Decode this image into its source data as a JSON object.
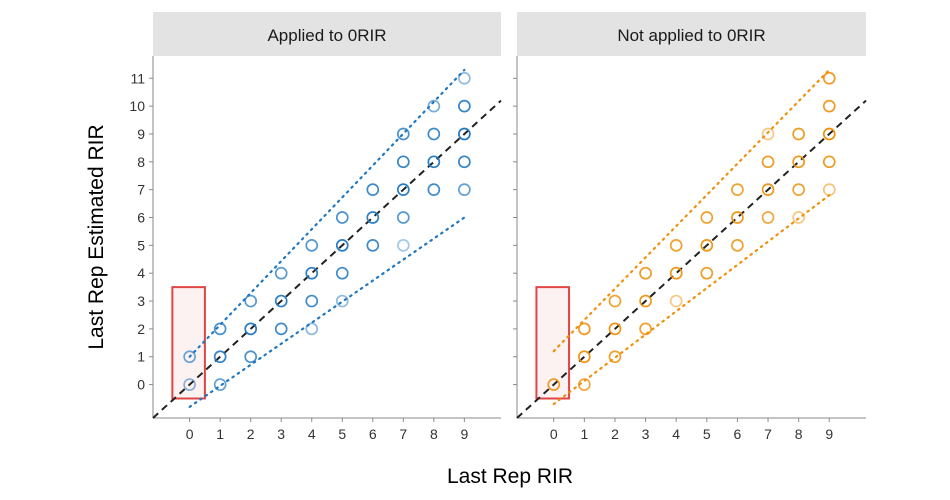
{
  "chart_data": [
    {
      "type": "scatter",
      "facet": "Applied to 0RIR",
      "xlabel": "Last Rep RIR",
      "ylabel": "Last Rep Estimated RIR",
      "x_ticks": [
        "0",
        "1",
        "2",
        "3",
        "4",
        "5",
        "6",
        "7",
        "8",
        "9"
      ],
      "y_ticks": [
        "0",
        "1",
        "2",
        "3",
        "4",
        "5",
        "6",
        "7",
        "8",
        "9",
        "10",
        "11"
      ],
      "xlim": [
        -1.2,
        10.2
      ],
      "ylim": [
        -1.2,
        11.8
      ],
      "color": "#1f78c1",
      "highlight_box": {
        "x_range": [
          -0.5,
          0.5
        ],
        "y_range": [
          -0.5,
          3.5
        ],
        "color": "#e04545"
      },
      "identity_line": {
        "style": "dashed",
        "color": "#222222"
      },
      "interval_lines": {
        "upper": {
          "from": [
            0,
            1
          ],
          "to": [
            9,
            11.3
          ]
        },
        "lower": {
          "from": [
            0,
            -0.8
          ],
          "to": [
            9,
            6
          ]
        }
      },
      "points": [
        {
          "x": 0,
          "y": 0,
          "opacity": 0.55
        },
        {
          "x": 0,
          "y": 1,
          "opacity": 0.65
        },
        {
          "x": 1,
          "y": 0,
          "opacity": 0.7
        },
        {
          "x": 1,
          "y": 1,
          "opacity": 0.9
        },
        {
          "x": 1,
          "y": 2,
          "opacity": 0.8
        },
        {
          "x": 2,
          "y": 1,
          "opacity": 0.8
        },
        {
          "x": 2,
          "y": 2,
          "opacity": 0.95
        },
        {
          "x": 2,
          "y": 3,
          "opacity": 0.75
        },
        {
          "x": 3,
          "y": 2,
          "opacity": 0.85
        },
        {
          "x": 3,
          "y": 3,
          "opacity": 0.95
        },
        {
          "x": 3,
          "y": 4,
          "opacity": 0.75
        },
        {
          "x": 4,
          "y": 2,
          "opacity": 0.5
        },
        {
          "x": 4,
          "y": 3,
          "opacity": 0.85
        },
        {
          "x": 4,
          "y": 4,
          "opacity": 0.95
        },
        {
          "x": 4,
          "y": 5,
          "opacity": 0.75
        },
        {
          "x": 5,
          "y": 3,
          "opacity": 0.5
        },
        {
          "x": 5,
          "y": 4,
          "opacity": 0.85
        },
        {
          "x": 5,
          "y": 5,
          "opacity": 0.95
        },
        {
          "x": 5,
          "y": 6,
          "opacity": 0.8
        },
        {
          "x": 6,
          "y": 5,
          "opacity": 0.85
        },
        {
          "x": 6,
          "y": 6,
          "opacity": 0.95
        },
        {
          "x": 6,
          "y": 7,
          "opacity": 0.85
        },
        {
          "x": 7,
          "y": 5,
          "opacity": 0.4
        },
        {
          "x": 7,
          "y": 6,
          "opacity": 0.75
        },
        {
          "x": 7,
          "y": 7,
          "opacity": 0.95
        },
        {
          "x": 7,
          "y": 8,
          "opacity": 0.9
        },
        {
          "x": 7,
          "y": 9,
          "opacity": 0.8
        },
        {
          "x": 8,
          "y": 7,
          "opacity": 0.85
        },
        {
          "x": 8,
          "y": 8,
          "opacity": 0.95
        },
        {
          "x": 8,
          "y": 9,
          "opacity": 0.85
        },
        {
          "x": 8,
          "y": 10,
          "opacity": 0.6
        },
        {
          "x": 9,
          "y": 7,
          "opacity": 0.7
        },
        {
          "x": 9,
          "y": 8,
          "opacity": 0.9
        },
        {
          "x": 9,
          "y": 9,
          "opacity": 1
        },
        {
          "x": 9,
          "y": 10,
          "opacity": 0.9
        },
        {
          "x": 9,
          "y": 11,
          "opacity": 0.5
        }
      ]
    },
    {
      "type": "scatter",
      "facet": "Not applied to 0RIR",
      "xlabel": "Last Rep RIR",
      "ylabel": "Last Rep Estimated RIR",
      "x_ticks": [
        "0",
        "1",
        "2",
        "3",
        "4",
        "5",
        "6",
        "7",
        "8",
        "9"
      ],
      "y_ticks": [
        "0",
        "1",
        "2",
        "3",
        "4",
        "5",
        "6",
        "7",
        "8",
        "9",
        "10",
        "11"
      ],
      "xlim": [
        -1.2,
        10.2
      ],
      "ylim": [
        -1.2,
        11.8
      ],
      "color": "#f0900c",
      "highlight_box": {
        "x_range": [
          -0.5,
          0.5
        ],
        "y_range": [
          -0.5,
          3.5
        ],
        "color": "#e04545"
      },
      "identity_line": {
        "style": "dashed",
        "color": "#222222"
      },
      "interval_lines": {
        "upper": {
          "from": [
            0,
            1.2
          ],
          "to": [
            9,
            11.3
          ]
        },
        "lower": {
          "from": [
            0,
            -0.7
          ],
          "to": [
            9,
            6.8
          ]
        }
      },
      "points": [
        {
          "x": 0,
          "y": 0,
          "opacity": 0.9
        },
        {
          "x": 1,
          "y": 0,
          "opacity": 0.8
        },
        {
          "x": 1,
          "y": 1,
          "opacity": 0.95
        },
        {
          "x": 1,
          "y": 2,
          "opacity": 0.9
        },
        {
          "x": 2,
          "y": 1,
          "opacity": 0.85
        },
        {
          "x": 2,
          "y": 2,
          "opacity": 0.95
        },
        {
          "x": 2,
          "y": 3,
          "opacity": 0.85
        },
        {
          "x": 3,
          "y": 2,
          "opacity": 0.85
        },
        {
          "x": 3,
          "y": 3,
          "opacity": 0.95
        },
        {
          "x": 3,
          "y": 4,
          "opacity": 0.9
        },
        {
          "x": 4,
          "y": 3,
          "opacity": 0.5
        },
        {
          "x": 4,
          "y": 4,
          "opacity": 0.95
        },
        {
          "x": 4,
          "y": 5,
          "opacity": 0.85
        },
        {
          "x": 5,
          "y": 4,
          "opacity": 0.9
        },
        {
          "x": 5,
          "y": 5,
          "opacity": 0.95
        },
        {
          "x": 5,
          "y": 6,
          "opacity": 0.85
        },
        {
          "x": 6,
          "y": 5,
          "opacity": 0.85
        },
        {
          "x": 6,
          "y": 6,
          "opacity": 0.95
        },
        {
          "x": 6,
          "y": 7,
          "opacity": 0.85
        },
        {
          "x": 7,
          "y": 6,
          "opacity": 0.8
        },
        {
          "x": 7,
          "y": 7,
          "opacity": 0.95
        },
        {
          "x": 7,
          "y": 8,
          "opacity": 0.9
        },
        {
          "x": 7,
          "y": 9,
          "opacity": 0.5
        },
        {
          "x": 8,
          "y": 6,
          "opacity": 0.5
        },
        {
          "x": 8,
          "y": 7,
          "opacity": 0.85
        },
        {
          "x": 8,
          "y": 8,
          "opacity": 0.95
        },
        {
          "x": 8,
          "y": 9,
          "opacity": 0.9
        },
        {
          "x": 9,
          "y": 7,
          "opacity": 0.55
        },
        {
          "x": 9,
          "y": 8,
          "opacity": 0.9
        },
        {
          "x": 9,
          "y": 9,
          "opacity": 1
        },
        {
          "x": 9,
          "y": 10,
          "opacity": 0.9
        },
        {
          "x": 9,
          "y": 11,
          "opacity": 0.9
        }
      ]
    }
  ]
}
